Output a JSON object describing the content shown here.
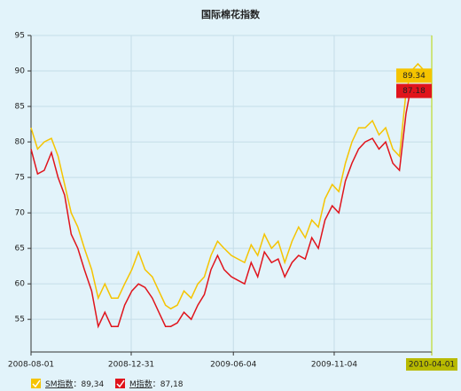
{
  "chart_data": {
    "type": "line",
    "title": "国际棉花指数",
    "x": [
      "2008-08-01",
      "2008-08-11",
      "2008-08-21",
      "2008-09-01",
      "2008-09-11",
      "2008-09-21",
      "2008-10-01",
      "2008-10-11",
      "2008-10-21",
      "2008-11-01",
      "2008-11-11",
      "2008-11-21",
      "2008-12-01",
      "2008-12-11",
      "2008-12-21",
      "2009-01-01",
      "2009-01-11",
      "2009-01-21",
      "2009-02-01",
      "2009-02-11",
      "2009-02-21",
      "2009-03-01",
      "2009-03-11",
      "2009-03-21",
      "2009-04-01",
      "2009-04-11",
      "2009-04-21",
      "2009-05-01",
      "2009-05-11",
      "2009-05-21",
      "2009-06-01",
      "2009-06-11",
      "2009-06-21",
      "2009-07-01",
      "2009-07-11",
      "2009-07-21",
      "2009-08-01",
      "2009-08-11",
      "2009-08-21",
      "2009-09-01",
      "2009-09-11",
      "2009-09-21",
      "2009-10-01",
      "2009-10-11",
      "2009-10-21",
      "2009-11-01",
      "2009-11-11",
      "2009-11-21",
      "2009-12-01",
      "2009-12-11",
      "2009-12-21",
      "2010-01-01",
      "2010-01-11",
      "2010-01-21",
      "2010-02-01",
      "2010-02-11",
      "2010-02-21",
      "2010-03-01",
      "2010-03-11",
      "2010-03-21",
      "2010-03-31"
    ],
    "series": [
      {
        "name": "SM指数",
        "color": "#f5c400",
        "legend_value": "：89,34",
        "values": [
          82,
          79,
          80,
          80.5,
          78,
          74,
          70,
          68,
          65,
          62,
          58,
          60,
          58,
          58,
          60,
          62,
          64.5,
          62,
          61,
          59,
          57,
          56.5,
          57,
          59,
          58,
          60,
          61,
          64,
          66,
          65,
          64,
          63.5,
          63,
          65.5,
          64,
          67,
          65,
          66,
          63,
          66,
          68,
          66.5,
          69,
          68,
          72,
          74,
          73,
          77,
          80,
          82,
          82,
          83,
          81,
          82,
          79,
          78,
          87,
          90,
          91,
          90,
          89.34
        ]
      },
      {
        "name": "M指数",
        "color": "#e0141c",
        "legend_value": "：87,18",
        "values": [
          79,
          75.5,
          76,
          78.5,
          75,
          72.5,
          67,
          65,
          62,
          59,
          54,
          56,
          54,
          54,
          57,
          59,
          60,
          59.5,
          58,
          56,
          54,
          54,
          54.5,
          56,
          55,
          57,
          58.5,
          62,
          64,
          62,
          61,
          60.5,
          60,
          63,
          61,
          64.5,
          63,
          63.5,
          61,
          63,
          64,
          63.5,
          66.5,
          65,
          69,
          71,
          70,
          74.5,
          77,
          79,
          80,
          80.5,
          79,
          80,
          77,
          76,
          84,
          88,
          88,
          88,
          87.18
        ]
      }
    ],
    "ylim": [
      50.4,
      95
    ],
    "yticks": [
      55,
      60,
      65,
      70,
      75,
      80,
      85,
      90,
      95
    ],
    "xlim": [
      "2008-08-01",
      "2010-04-01"
    ],
    "xticks": [
      "2008-08-01",
      "2008-12-31",
      "2009-06-04",
      "2009-11-04",
      "2010-04-01"
    ],
    "grid": true
  }
}
